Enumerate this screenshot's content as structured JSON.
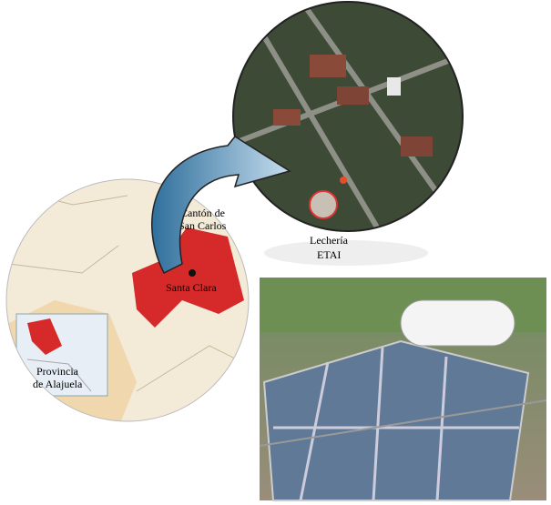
{
  "map": {
    "canton_label": [
      "Cantón de",
      "San Carlos"
    ],
    "city_label": "Santa Clara",
    "province_label": [
      "Provincia",
      "de Alajuela"
    ]
  },
  "satellite": {
    "site_label": [
      "Lechería",
      "ETAI"
    ]
  }
}
